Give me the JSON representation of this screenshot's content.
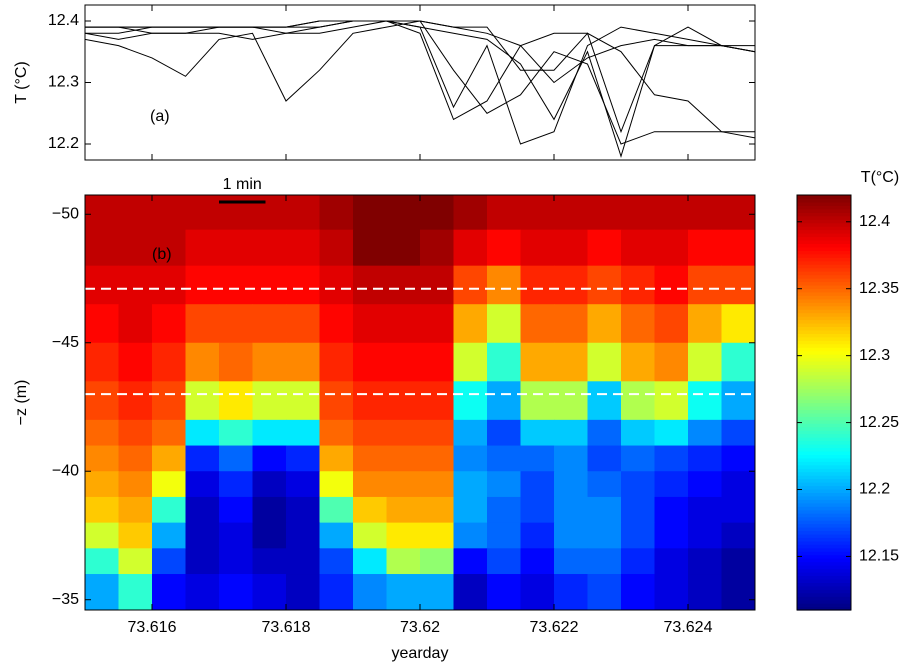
{
  "chart_data": [
    {
      "type": "line",
      "ylabel": "T (°C)",
      "annotation": "(a)",
      "xlim": [
        73.615,
        73.625
      ],
      "xticks": [
        73.616,
        73.618,
        73.62,
        73.622,
        73.624
      ],
      "show_xticklabels": false,
      "ylim": [
        12.174,
        12.426
      ],
      "yticks": [
        12.2,
        12.3,
        12.4
      ],
      "x": [
        73.615,
        73.6155,
        73.616,
        73.6165,
        73.617,
        73.6175,
        73.618,
        73.6185,
        73.619,
        73.6195,
        73.62,
        73.6205,
        73.621,
        73.6215,
        73.622,
        73.6225,
        73.623,
        73.6235,
        73.624,
        73.6245,
        73.625
      ],
      "series": [
        {
          "color": "#000000",
          "values": [
            12.37,
            12.36,
            12.34,
            12.31,
            12.37,
            12.38,
            12.27,
            12.32,
            12.38,
            12.39,
            12.4,
            12.39,
            12.38,
            12.36,
            12.3,
            12.34,
            12.36,
            12.37,
            12.36,
            12.36,
            12.36
          ]
        },
        {
          "color": "#000000",
          "values": [
            12.39,
            12.39,
            12.39,
            12.39,
            12.39,
            12.39,
            12.39,
            12.4,
            12.4,
            12.4,
            12.4,
            12.32,
            12.25,
            12.28,
            12.35,
            12.33,
            12.2,
            12.22,
            12.22,
            12.22,
            12.22
          ]
        },
        {
          "color": "#000000",
          "values": [
            12.39,
            12.39,
            12.39,
            12.39,
            12.39,
            12.39,
            12.39,
            12.4,
            12.4,
            12.4,
            12.38,
            12.24,
            12.27,
            12.36,
            12.38,
            12.38,
            12.35,
            12.28,
            12.27,
            12.22,
            12.21
          ]
        },
        {
          "color": "#000000",
          "values": [
            12.38,
            12.38,
            12.39,
            12.39,
            12.39,
            12.39,
            12.39,
            12.39,
            12.4,
            12.4,
            12.39,
            12.26,
            12.36,
            12.2,
            12.22,
            12.36,
            12.39,
            12.38,
            12.37,
            12.36,
            12.35
          ]
        },
        {
          "color": "#000000",
          "values": [
            12.39,
            12.39,
            12.38,
            12.38,
            12.39,
            12.39,
            12.38,
            12.39,
            12.4,
            12.4,
            12.4,
            12.39,
            12.39,
            12.32,
            12.32,
            12.38,
            12.22,
            12.36,
            12.36,
            12.36,
            12.35
          ]
        },
        {
          "color": "#000000",
          "values": [
            12.38,
            12.37,
            12.38,
            12.38,
            12.38,
            12.37,
            12.38,
            12.38,
            12.39,
            12.4,
            12.39,
            12.38,
            12.37,
            12.33,
            12.24,
            12.35,
            12.18,
            12.36,
            12.39,
            12.36,
            12.35
          ]
        }
      ]
    },
    {
      "type": "heatmap",
      "xlabel": "yearday",
      "ylabel": "−z (m)",
      "annotation": "(b)",
      "xlim": [
        73.615,
        73.625
      ],
      "xticks": [
        73.616,
        73.618,
        73.62,
        73.622,
        73.624
      ],
      "ylim": [
        -50.75,
        -34.6
      ],
      "yreverse": true,
      "yticks": [
        {
          "value": -50,
          "label": "−50"
        },
        {
          "value": -45,
          "label": "−45"
        },
        {
          "value": -40,
          "label": "−40"
        },
        {
          "value": -35,
          "label": "−35"
        }
      ],
      "colormap": "jet",
      "x": [
        73.615,
        73.6155,
        73.616,
        73.6165,
        73.617,
        73.6175,
        73.618,
        73.6185,
        73.619,
        73.6195,
        73.62,
        73.6205,
        73.621,
        73.6215,
        73.622,
        73.6225,
        73.623,
        73.6235,
        73.624,
        73.6245,
        73.625
      ],
      "y": [
        -50.75,
        -49.4,
        -48,
        -46.5,
        -45,
        -43.5,
        -42,
        -41,
        -40,
        -39,
        -38,
        -37,
        -36,
        -34.6
      ],
      "values": [
        [
          12.4,
          12.4,
          12.4,
          12.4,
          12.4,
          12.4,
          12.4,
          12.41,
          12.42,
          12.42,
          12.42,
          12.41,
          12.4,
          12.4,
          12.4,
          12.4,
          12.4,
          12.4,
          12.4,
          12.4
        ],
        [
          12.4,
          12.4,
          12.4,
          12.39,
          12.39,
          12.39,
          12.39,
          12.4,
          12.42,
          12.42,
          12.41,
          12.39,
          12.38,
          12.39,
          12.39,
          12.38,
          12.39,
          12.39,
          12.38,
          12.38
        ],
        [
          12.39,
          12.39,
          12.39,
          12.38,
          12.38,
          12.38,
          12.38,
          12.39,
          12.4,
          12.4,
          12.4,
          12.36,
          12.34,
          12.37,
          12.37,
          12.36,
          12.37,
          12.38,
          12.36,
          12.36
        ],
        [
          12.38,
          12.39,
          12.38,
          12.36,
          12.36,
          12.36,
          12.36,
          12.38,
          12.39,
          12.39,
          12.39,
          12.33,
          12.29,
          12.35,
          12.35,
          12.33,
          12.35,
          12.36,
          12.33,
          12.31
        ],
        [
          12.37,
          12.38,
          12.37,
          12.34,
          12.35,
          12.34,
          12.34,
          12.37,
          12.38,
          12.38,
          12.38,
          12.29,
          12.24,
          12.33,
          12.33,
          12.29,
          12.33,
          12.34,
          12.29,
          12.24
        ],
        [
          12.36,
          12.37,
          12.36,
          12.29,
          12.31,
          12.29,
          12.29,
          12.36,
          12.37,
          12.37,
          12.37,
          12.23,
          12.2,
          12.28,
          12.28,
          12.21,
          12.28,
          12.29,
          12.23,
          12.2
        ],
        [
          12.35,
          12.36,
          12.35,
          12.22,
          12.24,
          12.22,
          12.22,
          12.35,
          12.36,
          12.36,
          12.36,
          12.2,
          12.17,
          12.21,
          12.21,
          12.18,
          12.21,
          12.22,
          12.19,
          12.17
        ],
        [
          12.34,
          12.35,
          12.33,
          12.16,
          12.18,
          12.15,
          12.16,
          12.33,
          12.35,
          12.35,
          12.35,
          12.19,
          12.18,
          12.18,
          12.19,
          12.17,
          12.18,
          12.17,
          12.16,
          12.15
        ],
        [
          12.33,
          12.34,
          12.3,
          12.14,
          12.16,
          12.13,
          12.14,
          12.3,
          12.34,
          12.34,
          12.34,
          12.2,
          12.19,
          12.17,
          12.19,
          12.18,
          12.17,
          12.16,
          12.15,
          12.14
        ],
        [
          12.32,
          12.33,
          12.24,
          12.13,
          12.15,
          12.12,
          12.13,
          12.25,
          12.32,
          12.33,
          12.33,
          12.2,
          12.18,
          12.17,
          12.19,
          12.19,
          12.17,
          12.15,
          12.14,
          12.14
        ],
        [
          12.29,
          12.32,
          12.2,
          12.13,
          12.14,
          12.12,
          12.13,
          12.2,
          12.29,
          12.31,
          12.31,
          12.19,
          12.18,
          12.16,
          12.19,
          12.19,
          12.17,
          12.15,
          12.14,
          12.13
        ],
        [
          12.24,
          12.29,
          12.17,
          12.13,
          12.14,
          12.13,
          12.13,
          12.17,
          12.22,
          12.28,
          12.27,
          12.15,
          12.17,
          12.15,
          12.18,
          12.18,
          12.16,
          12.14,
          12.13,
          12.12
        ],
        [
          12.2,
          12.24,
          12.15,
          12.14,
          12.15,
          12.14,
          12.13,
          12.16,
          12.19,
          12.2,
          12.2,
          12.13,
          12.15,
          12.14,
          12.16,
          12.17,
          12.15,
          12.14,
          12.13,
          12.12
        ]
      ],
      "hlines": [
        -47.1,
        -43.0
      ],
      "hline_color": "#ffffff",
      "scalebar": {
        "label": "1 min",
        "start": 73.617,
        "length": 0.000694
      },
      "colorbar": {
        "label": "T(°C)",
        "clim": [
          12.11,
          12.42
        ],
        "ticks": [
          12.15,
          12.2,
          12.25,
          12.3,
          12.35,
          12.4
        ]
      }
    }
  ]
}
